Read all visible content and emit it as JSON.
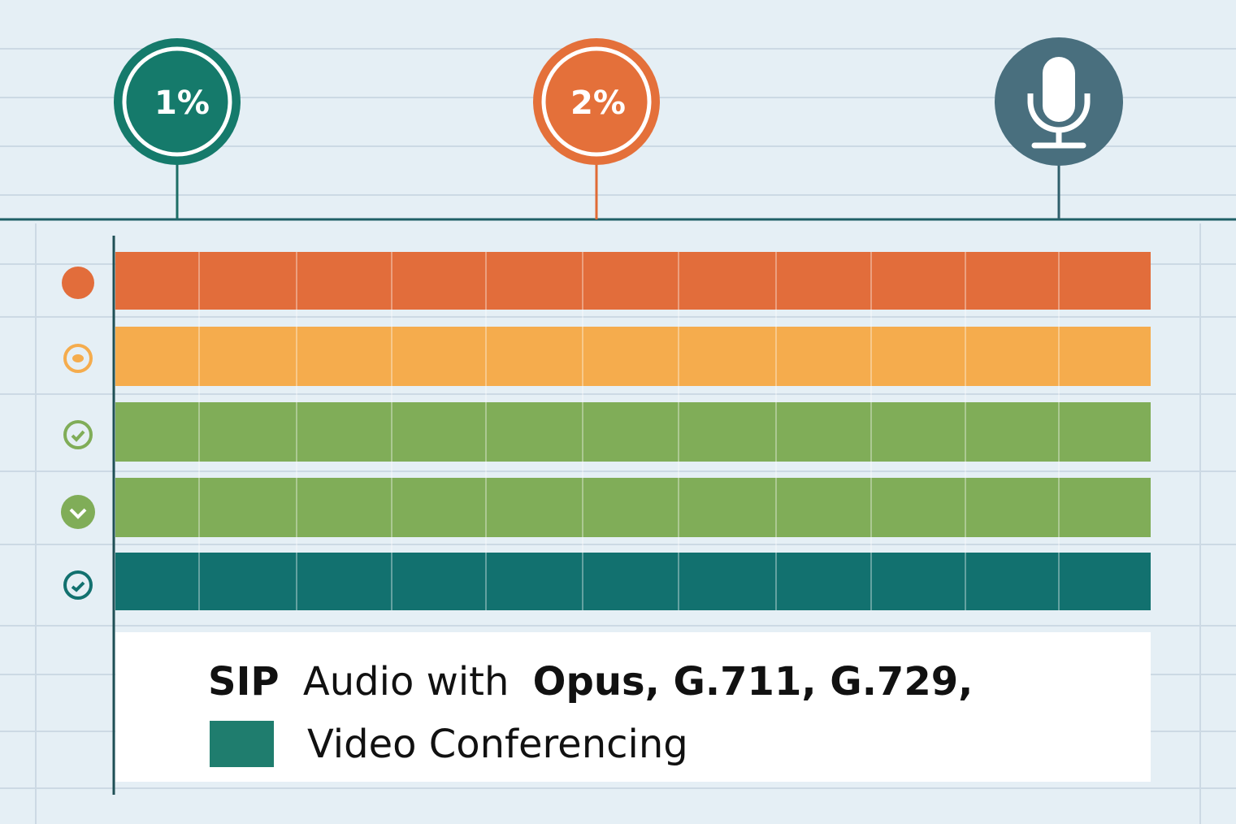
{
  "pins": [
    {
      "label": "1%"
    },
    {
      "label": "2%"
    }
  ],
  "caption": {
    "protocol": "SIP",
    "middle": "Audio with",
    "codecs": "Opus, G.711, G.729,",
    "line2": "Video Conferencing"
  }
}
